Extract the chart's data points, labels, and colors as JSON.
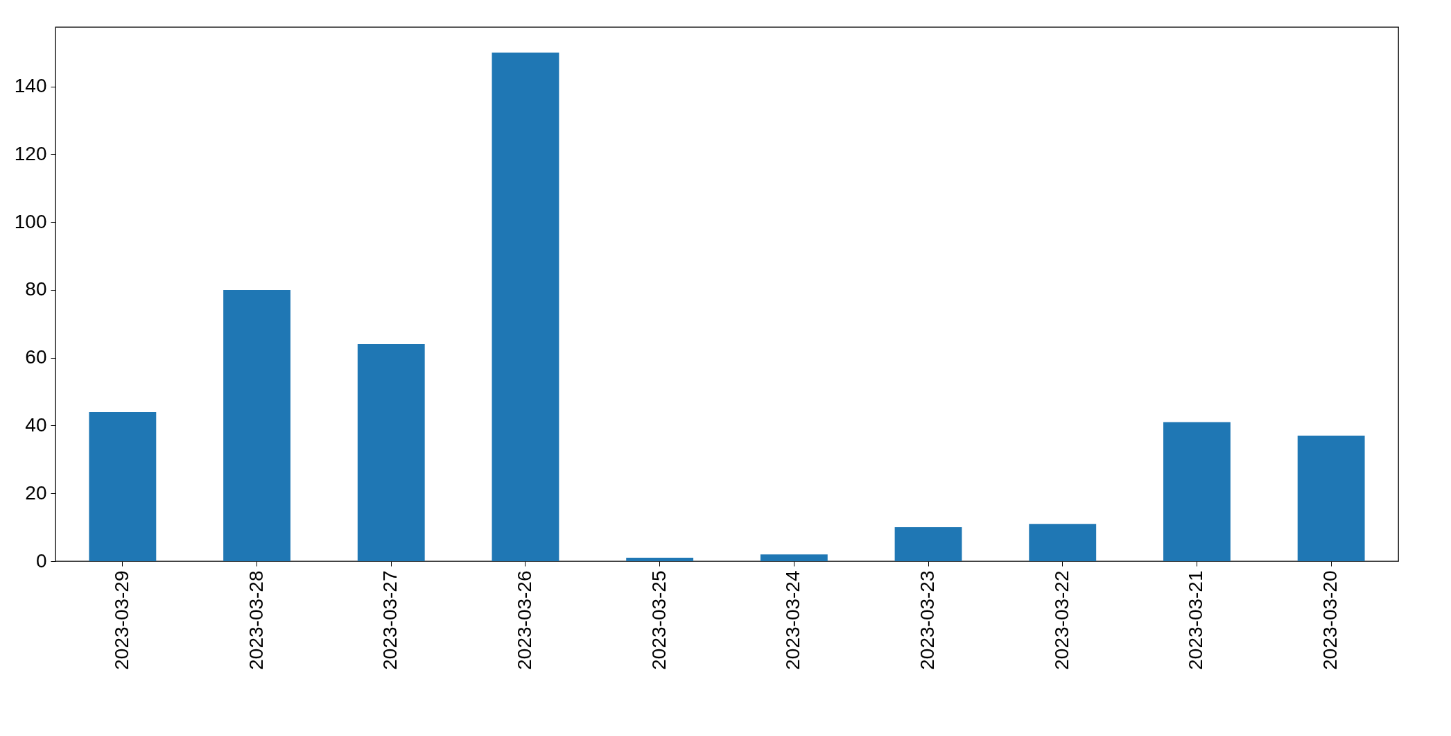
{
  "chart_data": {
    "type": "bar",
    "categories": [
      "2023-03-29",
      "2023-03-28",
      "2023-03-27",
      "2023-03-26",
      "2023-03-25",
      "2023-03-24",
      "2023-03-23",
      "2023-03-22",
      "2023-03-21",
      "2023-03-20"
    ],
    "values": [
      44,
      80,
      64,
      150,
      1,
      2,
      10,
      11,
      41,
      37
    ],
    "color": "#1f77b4",
    "ylim": [
      0,
      157.5
    ],
    "yticks": [
      0,
      20,
      40,
      60,
      80,
      100,
      120,
      140
    ],
    "grid": false
  }
}
